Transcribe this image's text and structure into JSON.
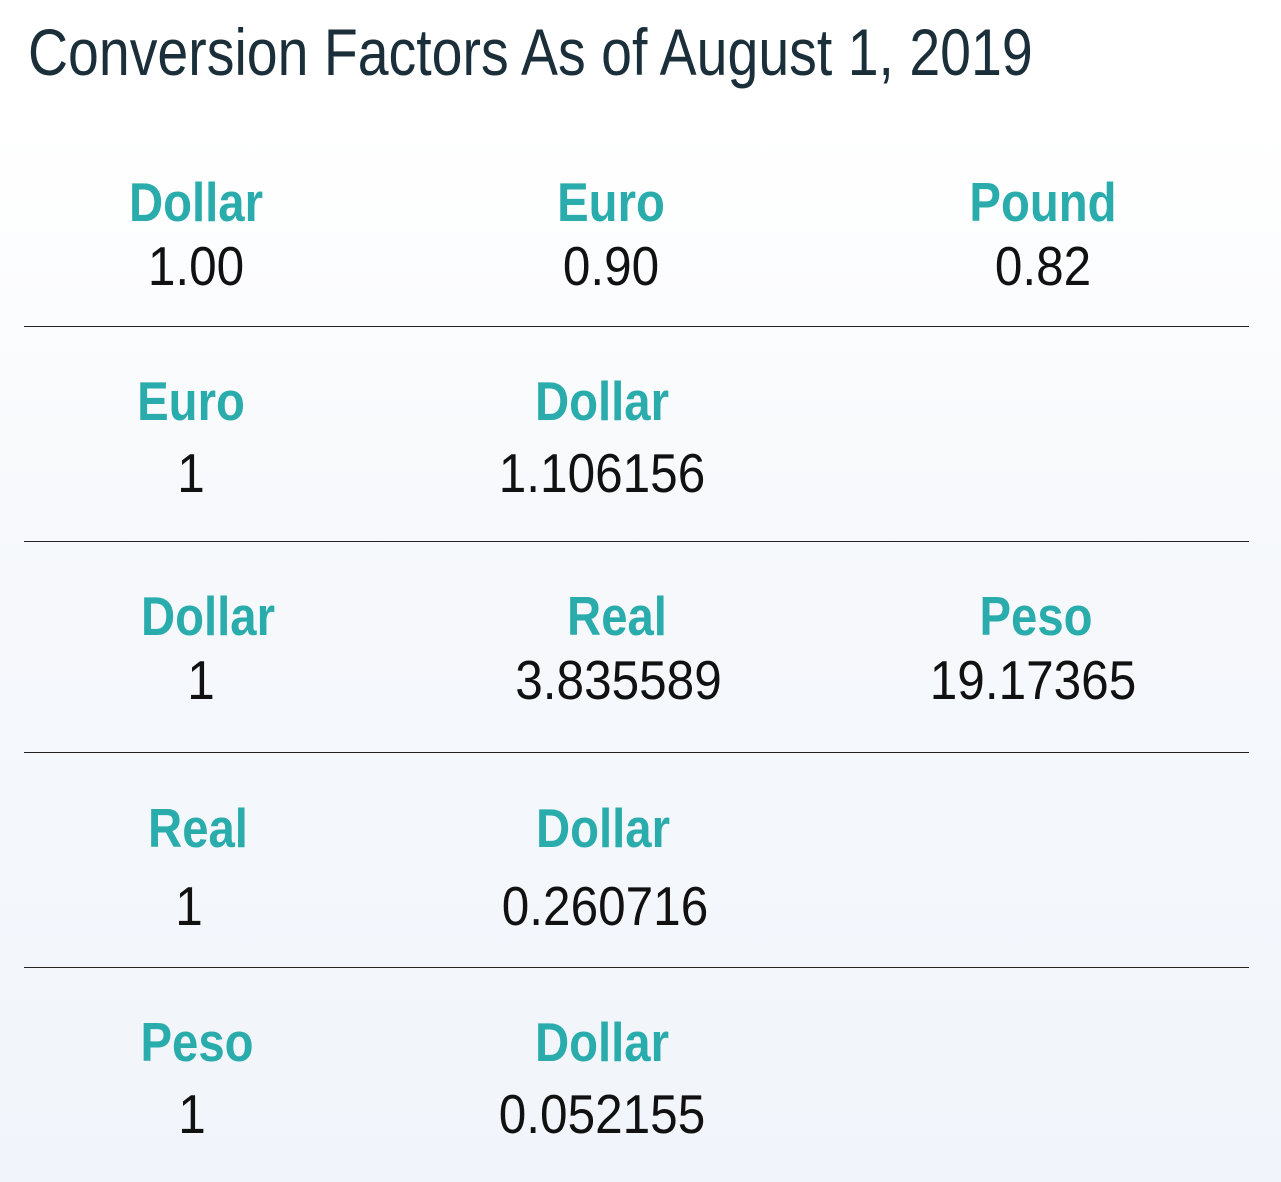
{
  "title": "Conversion Factors As of August 1, 2019",
  "rows": [
    {
      "cells": [
        {
          "label": "Dollar",
          "value": "1.00"
        },
        {
          "label": "Euro",
          "value": "0.90"
        },
        {
          "label": "Pound",
          "value": "0.82"
        }
      ]
    },
    {
      "cells": [
        {
          "label": "Euro",
          "value": "1"
        },
        {
          "label": "Dollar",
          "value": "1.106156"
        }
      ]
    },
    {
      "cells": [
        {
          "label": "Dollar",
          "value": "1"
        },
        {
          "label": "Real",
          "value": "3.835589"
        },
        {
          "label": "Peso",
          "value": "19.17365"
        }
      ]
    },
    {
      "cells": [
        {
          "label": "Real",
          "value": "1"
        },
        {
          "label": "Dollar",
          "value": "0.260716"
        }
      ]
    },
    {
      "cells": [
        {
          "label": "Peso",
          "value": "1"
        },
        {
          "label": "Dollar",
          "value": "0.052155"
        }
      ]
    }
  ],
  "colors": {
    "title": "#1b2f3a",
    "label": "#2aacac",
    "value": "#111111",
    "divider": "#222222"
  }
}
